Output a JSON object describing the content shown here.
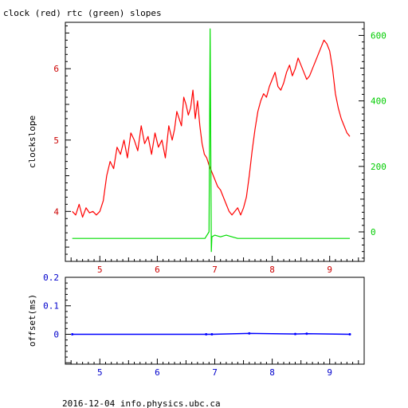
{
  "title": "clock (red) rtc (green) slopes",
  "footer": "2016-12-04 info.physics.ubc.ca",
  "colors": {
    "clock": "#ff0000",
    "rtc": "#00dd00",
    "offset": "#0000ff",
    "axis_red": "#cc0000",
    "axis_green": "#00cc00",
    "axis_blue": "#0000cc"
  },
  "chart_data": [
    {
      "type": "line",
      "xlabel": "",
      "ylabel": "clockslope",
      "y2label": "",
      "xlim": [
        4.4,
        9.6
      ],
      "ylim": [
        3.3,
        6.65
      ],
      "y2lim": [
        -90,
        640
      ],
      "xticks": [
        "5",
        "6",
        "7",
        "8",
        "9"
      ],
      "yticks": [
        "4",
        "5",
        "6"
      ],
      "y2ticks": [
        "0",
        "200",
        "400",
        "600"
      ],
      "grid": false,
      "series": [
        {
          "name": "clock (red)",
          "axis": "left",
          "x": [
            4.52,
            4.58,
            4.64,
            4.7,
            4.76,
            4.82,
            4.88,
            4.94,
            5.0,
            5.06,
            5.12,
            5.18,
            5.24,
            5.3,
            5.36,
            5.42,
            5.48,
            5.54,
            5.6,
            5.66,
            5.72,
            5.78,
            5.84,
            5.9,
            5.96,
            6.02,
            6.08,
            6.14,
            6.2,
            6.26,
            6.3,
            6.34,
            6.38,
            6.42,
            6.46,
            6.5,
            6.54,
            6.58,
            6.62,
            6.66,
            6.7,
            6.74,
            6.78,
            6.82,
            6.86,
            6.9,
            6.95,
            7.0,
            7.05,
            7.1,
            7.15,
            7.2,
            7.25,
            7.3,
            7.35,
            7.4,
            7.45,
            7.5,
            7.55,
            7.6,
            7.65,
            7.7,
            7.75,
            7.8,
            7.85,
            7.9,
            7.95,
            8.0,
            8.05,
            8.1,
            8.15,
            8.2,
            8.25,
            8.3,
            8.35,
            8.4,
            8.45,
            8.5,
            8.55,
            8.6,
            8.65,
            8.7,
            8.75,
            8.8,
            8.85,
            8.9,
            8.95,
            9.0,
            9.05,
            9.1,
            9.15,
            9.2,
            9.25,
            9.3,
            9.35
          ],
          "y": [
            4.0,
            3.95,
            4.1,
            3.92,
            4.05,
            3.98,
            4.0,
            3.95,
            4.0,
            4.15,
            4.5,
            4.7,
            4.6,
            4.9,
            4.8,
            5.0,
            4.75,
            5.1,
            5.0,
            4.85,
            5.2,
            4.95,
            5.05,
            4.8,
            5.1,
            4.9,
            5.0,
            4.75,
            5.2,
            5.0,
            5.15,
            5.4,
            5.3,
            5.2,
            5.6,
            5.5,
            5.35,
            5.45,
            5.7,
            5.3,
            5.55,
            5.2,
            4.95,
            4.8,
            4.75,
            4.65,
            4.55,
            4.45,
            4.35,
            4.3,
            4.2,
            4.1,
            4.0,
            3.95,
            4.0,
            4.05,
            3.95,
            4.05,
            4.2,
            4.5,
            4.85,
            5.15,
            5.4,
            5.55,
            5.65,
            5.6,
            5.75,
            5.85,
            5.95,
            5.75,
            5.7,
            5.8,
            5.95,
            6.05,
            5.9,
            6.0,
            6.15,
            6.05,
            5.95,
            5.85,
            5.9,
            6.0,
            6.1,
            6.2,
            6.3,
            6.4,
            6.35,
            6.25,
            6.0,
            5.65,
            5.45,
            5.3,
            5.2,
            5.1,
            5.05
          ]
        },
        {
          "name": "rtc (green)",
          "axis": "right",
          "x": [
            4.52,
            6.83,
            6.9,
            6.92,
            6.94,
            6.95,
            7.0,
            7.1,
            7.2,
            7.3,
            7.4,
            8.0,
            8.5,
            9.0,
            9.35
          ],
          "y": [
            -20,
            -20,
            0,
            620,
            -60,
            -15,
            -10,
            -15,
            -10,
            -15,
            -20,
            -20,
            -20,
            -20,
            -20
          ]
        }
      ]
    },
    {
      "type": "scatter",
      "xlabel": "",
      "ylabel": "offset(ms)",
      "xlim": [
        4.4,
        9.6
      ],
      "ylim": [
        -0.105,
        0.2
      ],
      "xticks": [
        "5",
        "6",
        "7",
        "8",
        "9"
      ],
      "yticks": [
        "0",
        "0.1",
        "0.2"
      ],
      "grid": false,
      "series": [
        {
          "name": "offset",
          "x": [
            4.52,
            6.85,
            6.95,
            7.6,
            8.4,
            8.6,
            9.35
          ],
          "y": [
            0.0,
            0.0,
            0.0,
            0.003,
            0.001,
            0.002,
            0.0
          ]
        }
      ]
    }
  ]
}
